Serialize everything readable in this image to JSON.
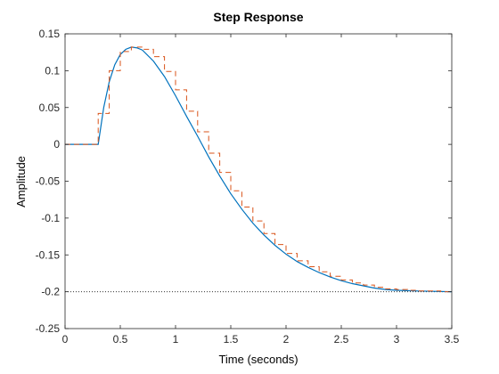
{
  "chart_data": {
    "type": "line",
    "title": "Step Response",
    "xlabel": "Time (seconds)",
    "ylabel": "Amplitude",
    "xlim": [
      0,
      3.5
    ],
    "ylim": [
      -0.25,
      0.15
    ],
    "xticks": [
      0,
      0.5,
      1,
      1.5,
      2,
      2.5,
      3,
      3.5
    ],
    "xtick_labels": [
      "0",
      "0.5",
      "1",
      "1.5",
      "2",
      "2.5",
      "3",
      "3.5"
    ],
    "yticks": [
      -0.25,
      -0.2,
      -0.15,
      -0.1,
      -0.05,
      0,
      0.05,
      0.1,
      0.15
    ],
    "ytick_labels": [
      "-0.25",
      "-0.2",
      "-0.15",
      "-0.1",
      "-0.05",
      "0",
      "0.05",
      "0.1",
      "0.15"
    ],
    "grid": false,
    "reference_line": {
      "y": -0.2,
      "style": "dotted"
    },
    "series": [
      {
        "kind": "continuous",
        "color": "#0072bd",
        "x": [
          0,
          0.3,
          0.35,
          0.4,
          0.45,
          0.5,
          0.55,
          0.6,
          0.65,
          0.7,
          0.8,
          0.9,
          1.0,
          1.1,
          1.2,
          1.3,
          1.4,
          1.5,
          1.6,
          1.7,
          1.8,
          1.9,
          2.0,
          2.1,
          2.2,
          2.3,
          2.4,
          2.5,
          2.6,
          2.7,
          2.8,
          2.9,
          3.0,
          3.2,
          3.5
        ],
        "y": [
          0,
          0,
          0.05,
          0.085,
          0.108,
          0.122,
          0.129,
          0.132,
          0.131,
          0.128,
          0.113,
          0.092,
          0.066,
          0.038,
          0.011,
          -0.017,
          -0.043,
          -0.067,
          -0.088,
          -0.107,
          -0.123,
          -0.137,
          -0.149,
          -0.159,
          -0.167,
          -0.174,
          -0.18,
          -0.185,
          -0.189,
          -0.192,
          -0.195,
          -0.197,
          -0.198,
          -0.199,
          -0.2
        ]
      },
      {
        "kind": "discrete-stairs",
        "color": "#d95319",
        "dash": "6 4",
        "x": [
          0,
          0.3,
          0.4,
          0.5,
          0.6,
          0.7,
          0.8,
          0.9,
          1.0,
          1.1,
          1.2,
          1.3,
          1.4,
          1.5,
          1.6,
          1.7,
          1.8,
          1.9,
          2.0,
          2.1,
          2.2,
          2.3,
          2.4,
          2.5,
          2.6,
          2.7,
          2.8,
          2.9,
          3.0,
          3.1,
          3.2,
          3.3,
          3.4,
          3.5
        ],
        "y": [
          0,
          0.042,
          0.1,
          0.126,
          0.132,
          0.129,
          0.119,
          0.099,
          0.074,
          0.045,
          0.017,
          -0.012,
          -0.038,
          -0.063,
          -0.085,
          -0.104,
          -0.121,
          -0.136,
          -0.148,
          -0.158,
          -0.166,
          -0.173,
          -0.179,
          -0.184,
          -0.188,
          -0.191,
          -0.194,
          -0.196,
          -0.197,
          -0.198,
          -0.199,
          -0.199,
          -0.2,
          -0.2
        ]
      }
    ]
  }
}
